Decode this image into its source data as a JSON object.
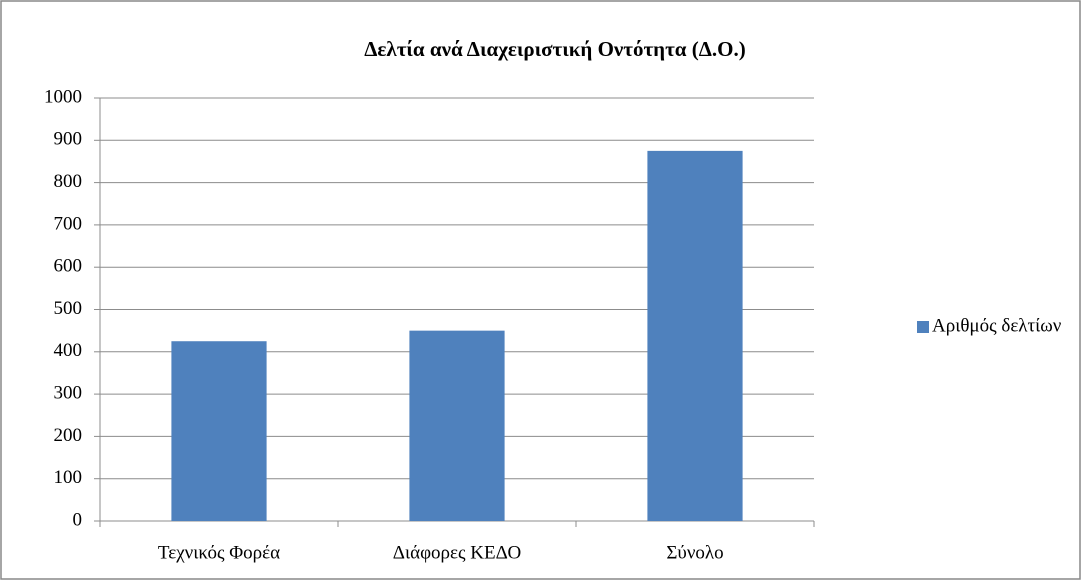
{
  "chart_data": {
    "type": "bar",
    "title": "Δελτία ανά Διαχειριστική Οντότητα (Δ.Ο.)",
    "categories": [
      "Τεχνικός Φορέα",
      "Διάφορες ΚΕΔΟ",
      "Σύνολο"
    ],
    "series": [
      {
        "name": "Αριθμός δελτίων",
        "color": "#4f81bd",
        "values": [
          425,
          450,
          875
        ]
      }
    ],
    "ylim": [
      0,
      1000
    ],
    "yticks": [
      0,
      100,
      200,
      300,
      400,
      500,
      600,
      700,
      800,
      900,
      1000
    ],
    "grid": true,
    "legend": "right"
  }
}
